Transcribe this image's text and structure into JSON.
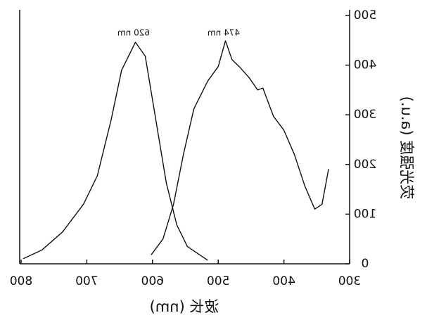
{
  "chart_data": {
    "type": "line",
    "x_label": "波长 (nm)",
    "y_label": "荧光强度 (a.u.)",
    "xlim": [
      800,
      300
    ],
    "xticks": [
      800,
      700,
      600,
      500,
      400,
      300
    ],
    "ylim": [
      0,
      500
    ],
    "yticks": [
      0,
      100,
      200,
      300,
      400,
      500
    ],
    "annotations": [
      "620 nm",
      "474 nm"
    ],
    "series": [
      {
        "color": "#111111",
        "x": [
          797,
          768,
          737,
          705,
          684,
          663,
          647,
          626,
          611,
          595,
          579,
          563,
          547,
          516
        ],
        "values": [
          10,
          28,
          64,
          120,
          177,
          290,
          390,
          446,
          418,
          290,
          163,
          78,
          35,
          7
        ]
      },
      {
        "color": "#111111",
        "x": [
          602,
          584,
          568,
          553,
          537,
          516,
          500,
          489,
          479,
          468,
          453,
          440,
          432,
          416,
          400,
          384,
          368,
          353,
          342,
          332
        ],
        "values": [
          18,
          50,
          120,
          220,
          312,
          368,
          397,
          449,
          411,
          397,
          375,
          350,
          354,
          297,
          269,
          220,
          156,
          110,
          120,
          191
        ]
      }
    ]
  }
}
